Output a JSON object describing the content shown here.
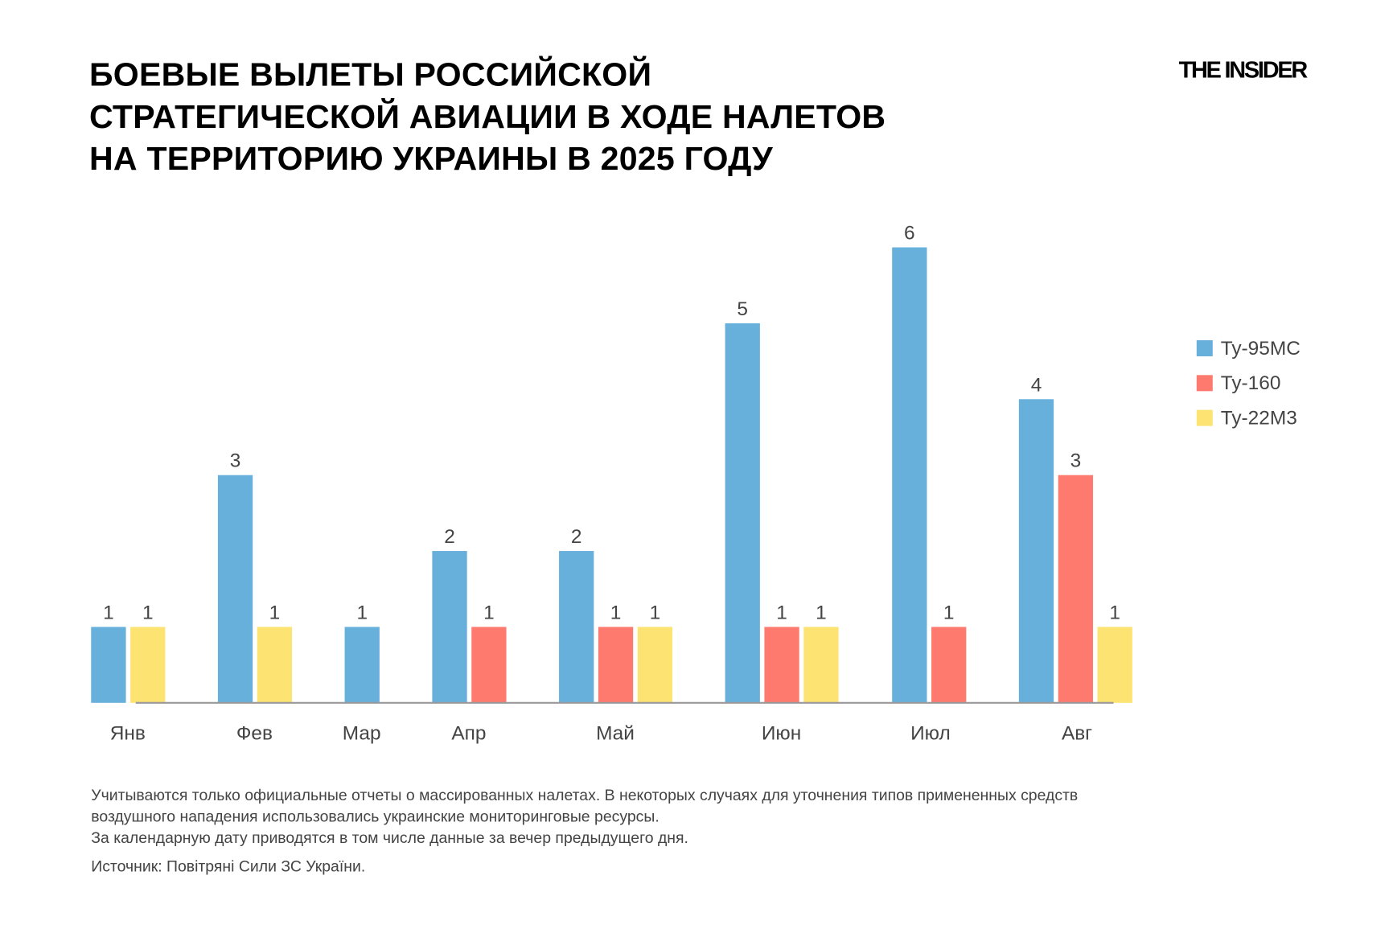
{
  "header": {
    "title_lines": [
      "БОЕВЫЕ ВЫЛЕТЫ РОССИЙСКОЙ",
      "СТРАТЕГИЧЕСКОЙ АВИАЦИИ В ХОДЕ НАЛЕТОВ",
      "НА ТЕРРИТОРИЮ УКРАИНЫ В 2025 ГОДУ"
    ],
    "logo": "THE INSIDER"
  },
  "chart_data": {
    "type": "bar",
    "title": "БОЕВЫЕ ВЫЛЕТЫ РОССИЙСКОЙ СТРАТЕГИЧЕСКОЙ АВИАЦИИ В ХОДЕ НАЛЕТОВ НА ТЕРРИТОРИЮ УКРАИНЫ В 2025 ГОДУ",
    "categories": [
      "Янв",
      "Фев",
      "Мар",
      "Апр",
      "Май",
      "Июн",
      "Июл",
      "Авг"
    ],
    "series": [
      {
        "name": "Ту-95МС",
        "color": "#67B0DC",
        "values": [
          1,
          3,
          1,
          2,
          2,
          5,
          6,
          4
        ]
      },
      {
        "name": "Ту-160",
        "color": "#FF7A6E",
        "values": [
          0,
          0,
          0,
          1,
          1,
          1,
          1,
          3
        ]
      },
      {
        "name": "Ту-22М3",
        "color": "#FDE372",
        "values": [
          1,
          1,
          0,
          0,
          1,
          1,
          0,
          1
        ]
      }
    ],
    "ylim": [
      0,
      6
    ],
    "grid": false,
    "y_axis_shown": false,
    "data_labels": true,
    "legend_position": "right"
  },
  "footer": {
    "notes": [
      "Учитываются только официальные отчеты о массированных налетах. В некоторых случаях для уточнения типов примененных средств",
      "воздушного нападения использовались украинские мониторинговые ресурсы.",
      "За календарную дату приводятся в том числе данные за вечер предыдущего дня."
    ],
    "source": "Источник: Повітряні Сили ЗС України."
  }
}
